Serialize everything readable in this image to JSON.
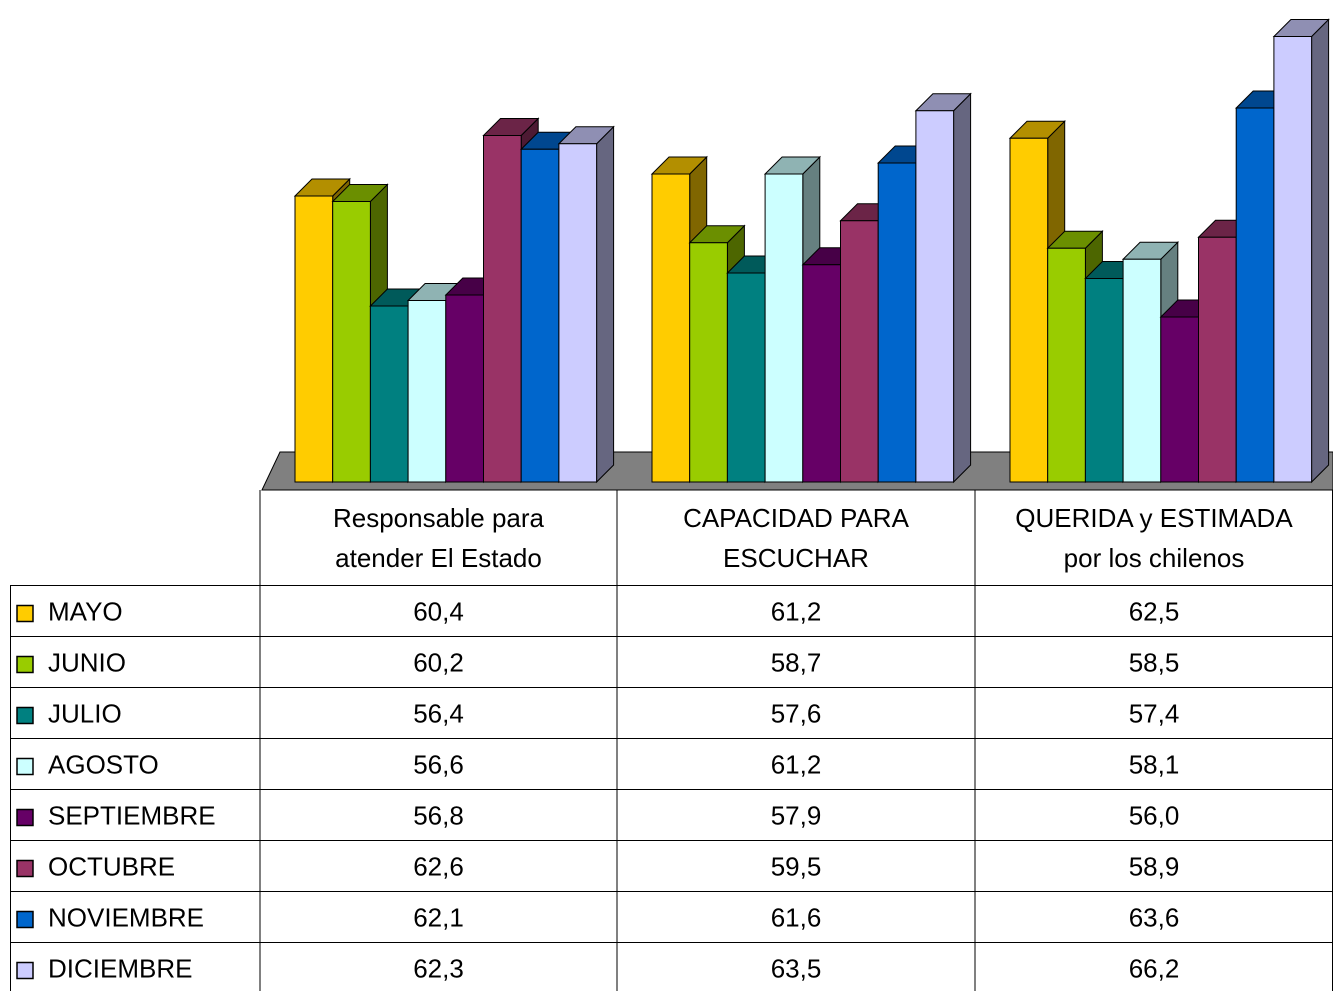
{
  "chart_data": {
    "type": "bar",
    "categories": [
      "Responsable para\natender El Estado",
      "CAPACIDAD PARA\nESCUCHAR",
      "QUERIDA y ESTIMADA\npor los chilenos"
    ],
    "series": [
      {
        "name": "MAYO",
        "color": "#ffcc00",
        "values": [
          60.4,
          61.2,
          62.5
        ],
        "value_labels": [
          "60,4",
          "61,2",
          "62,5"
        ]
      },
      {
        "name": "JUNIO",
        "color": "#99cc00",
        "values": [
          60.2,
          58.7,
          58.5
        ],
        "value_labels": [
          "60,2",
          "58,7",
          "58,5"
        ]
      },
      {
        "name": "JULIO",
        "color": "#008080",
        "values": [
          56.4,
          57.6,
          57.4
        ],
        "value_labels": [
          "56,4",
          "57,6",
          "57,4"
        ]
      },
      {
        "name": "AGOSTO",
        "color": "#ccffff",
        "values": [
          56.6,
          61.2,
          58.1
        ],
        "value_labels": [
          "56,6",
          "61,2",
          "58,1"
        ]
      },
      {
        "name": "SEPTIEMBRE",
        "color": "#660066",
        "values": [
          56.8,
          57.9,
          56.0
        ],
        "value_labels": [
          "56,8",
          "57,9",
          "56,0"
        ]
      },
      {
        "name": "OCTUBRE",
        "color": "#993366",
        "values": [
          62.6,
          59.5,
          58.9
        ],
        "value_labels": [
          "62,6",
          "59,5",
          "58,9"
        ]
      },
      {
        "name": "NOVIEMBRE",
        "color": "#0066cc",
        "values": [
          62.1,
          61.6,
          63.6
        ],
        "value_labels": [
          "62,1",
          "61,6",
          "63,6"
        ]
      },
      {
        "name": "DICIEMBRE",
        "color": "#ccccff",
        "values": [
          62.3,
          63.5,
          66.2
        ],
        "value_labels": [
          "62,3",
          "63,5",
          "66,2"
        ]
      }
    ],
    "ylim": [
      50,
      67
    ]
  }
}
